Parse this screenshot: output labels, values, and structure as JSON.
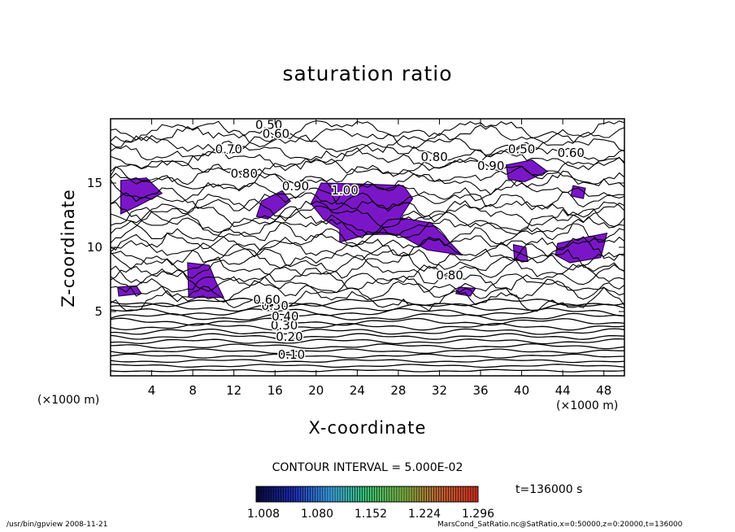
{
  "chart_data": {
    "type": "contour",
    "title": "saturation ratio",
    "xlabel": "X-coordinate",
    "ylabel": "Z-coordinate",
    "x_unit": "(×1000 m)",
    "xlim": [
      0,
      50
    ],
    "ylim": [
      0,
      20
    ],
    "x_ticks": [
      "4",
      "8",
      "12",
      "16",
      "20",
      "24",
      "28",
      "32",
      "36",
      "40",
      "44",
      "48"
    ],
    "y_ticks": [
      "5",
      "10",
      "15"
    ],
    "contour_interval_text": "CONTOUR INTERVAL = 5.000E-02",
    "contour_labels": [
      {
        "text": "0.10",
        "x": 17.6,
        "z": 1.6
      },
      {
        "text": "0.20",
        "x": 17.4,
        "z": 3.0
      },
      {
        "text": "0.30",
        "x": 16.9,
        "z": 3.9
      },
      {
        "text": "0.40",
        "x": 17.0,
        "z": 4.6
      },
      {
        "text": "0.50",
        "x": 16.0,
        "z": 5.4
      },
      {
        "text": "0.60",
        "x": 15.2,
        "z": 5.9
      },
      {
        "text": "0.50",
        "x": 15.4,
        "z": 19.5
      },
      {
        "text": "0.60",
        "x": 16.1,
        "z": 18.8
      },
      {
        "text": "0.70",
        "x": 11.5,
        "z": 17.6
      },
      {
        "text": "0.80",
        "x": 13.0,
        "z": 15.7
      },
      {
        "text": "0.90",
        "x": 18.0,
        "z": 14.7
      },
      {
        "text": "1.00",
        "x": 22.8,
        "z": 14.4
      },
      {
        "text": "0.80",
        "x": 31.5,
        "z": 17.0
      },
      {
        "text": "0.90",
        "x": 37.0,
        "z": 16.3
      },
      {
        "text": "0.50",
        "x": 40.0,
        "z": 17.6
      },
      {
        "text": "0.60",
        "x": 44.8,
        "z": 17.3
      },
      {
        "text": "0.80",
        "x": 33.0,
        "z": 7.8
      }
    ],
    "colorbar": {
      "ticks": [
        "1.008",
        "1.080",
        "1.152",
        "1.224",
        "1.296"
      ],
      "colors": [
        "#0a0a3c",
        "#1a2bb0",
        "#3aa0e0",
        "#38c070",
        "#7ab040",
        "#c06030",
        "#d03020"
      ]
    },
    "fill_color": "#7b16c8",
    "time_label": "t=136000 s",
    "footer_left": "/usr/bin/gpview   2008-11-21",
    "footer_right": "MarsCond_SatRatio.nc@SatRatio,x=0:50000,z=0:20000,t=136000"
  }
}
